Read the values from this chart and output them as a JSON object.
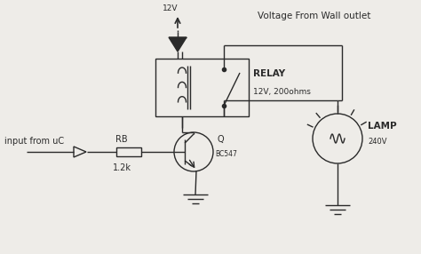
{
  "background_color": "#eeece8",
  "line_color": "#2a2a2a",
  "text_color": "#2a2a2a",
  "title": "Voltage From Wall outlet",
  "relay_label": "RELAY",
  "relay_spec": "12V, 200ohms",
  "lamp_label": "LAMP",
  "lamp_spec": "240V",
  "rb_label": "RB",
  "rb_value": "1.2k",
  "transistor_label": "Q",
  "transistor_spec": "BC547",
  "input_label": "input from uC",
  "vcc_label": "12V"
}
